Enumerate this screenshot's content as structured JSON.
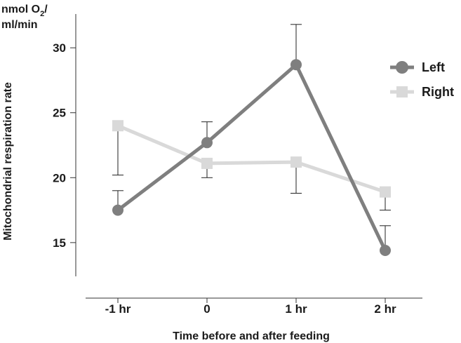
{
  "chart_data": {
    "type": "line",
    "categories": [
      "-1 hr",
      "0",
      "1 hr",
      "2 hr"
    ],
    "series": [
      {
        "name": "Left",
        "color": "#7f7f7f",
        "marker": "circle",
        "values": [
          17.5,
          22.7,
          28.7,
          14.4
        ],
        "error_upper": [
          19.0,
          24.3,
          31.8,
          16.3
        ]
      },
      {
        "name": "Right",
        "color": "#d9d9d9",
        "marker": "square",
        "values": [
          24.0,
          21.1,
          21.2,
          18.9
        ],
        "error_lower": [
          20.2,
          20.0,
          18.8,
          17.5
        ]
      }
    ],
    "ylabel": "Mitochondrial respiration rate",
    "xlabel": "Time before and after feeding",
    "unit_line1": "nmol O",
    "unit_sub": "2",
    "unit_slash": "/",
    "unit_line2": "ml/min",
    "yticks": [
      15,
      20,
      25,
      30
    ],
    "ylim": [
      12.4,
      32.6
    ],
    "grid": false,
    "legend_position": "top-right"
  }
}
